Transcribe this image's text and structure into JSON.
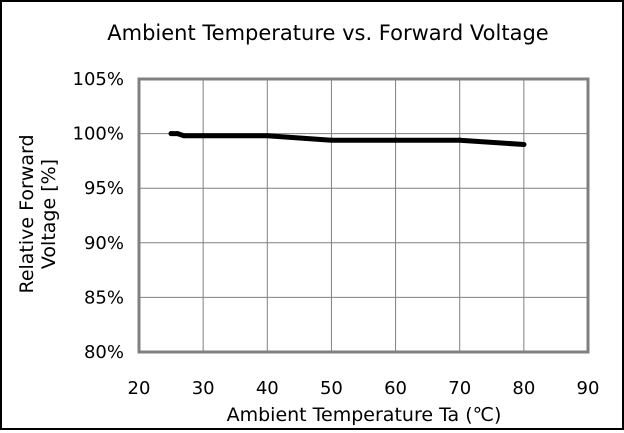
{
  "chart_data": {
    "type": "line",
    "title": "Ambient Temperature vs. Forward Voltage",
    "xlabel": "Ambient Temperature Ta (℃)",
    "ylabel_lines": [
      "Relative Forward",
      "Voltage [%]"
    ],
    "xlim": [
      20,
      90
    ],
    "ylim": [
      80,
      105
    ],
    "xticks": [
      "20",
      "30",
      "40",
      "50",
      "60",
      "70",
      "80",
      "90"
    ],
    "yticks": [
      "80%",
      "85%",
      "90%",
      "95%",
      "100%",
      "105%"
    ],
    "grid": true,
    "series": [
      {
        "color": "#000000",
        "x": [
          25,
          26,
          27,
          30,
          40,
          50,
          60,
          70,
          80
        ],
        "y": [
          100.0,
          100.0,
          99.8,
          99.8,
          99.8,
          99.4,
          99.4,
          99.4,
          99.0
        ]
      }
    ]
  }
}
